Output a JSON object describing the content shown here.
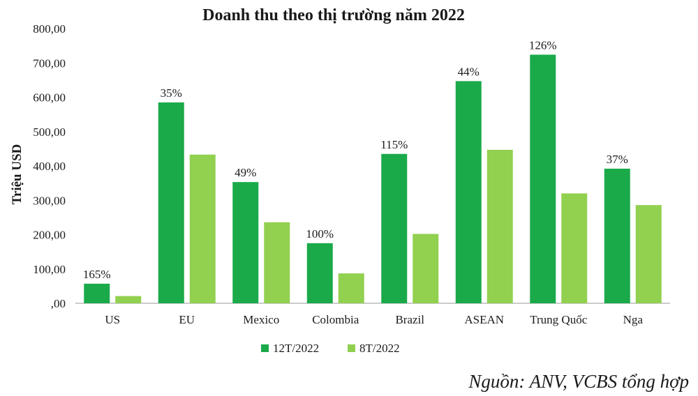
{
  "chart_data": {
    "type": "bar",
    "title": "Doanh thu theo thị trường năm 2022",
    "ylabel": "Triệu USD",
    "xlabel": "",
    "ylim": [
      0,
      800
    ],
    "yticks": [
      "800,00",
      "700,00",
      "600,00",
      "500,00",
      "400,00",
      "300,00",
      "200,00",
      "100,00",
      ",00"
    ],
    "ytick_values": [
      800,
      700,
      600,
      500,
      400,
      300,
      200,
      100,
      0
    ],
    "categories": [
      "US",
      "EU",
      "Mexico",
      "Colombia",
      "Brazil",
      "ASEAN",
      "Trung Quốc",
      "Nga"
    ],
    "series": [
      {
        "name": "12T/2022",
        "color": "#1aaa4a",
        "values": [
          57,
          585,
          353,
          175,
          435,
          647,
          724,
          392
        ]
      },
      {
        "name": "8T/2022",
        "color": "#92d050",
        "values": [
          21,
          433,
          236,
          87,
          202,
          447,
          320,
          286
        ]
      }
    ],
    "data_labels": [
      "165%",
      "35%",
      "49%",
      "100%",
      "115%",
      "44%",
      "126%",
      "37%"
    ],
    "grid": false,
    "legend_position": "bottom"
  },
  "source_note": "Nguồn: ANV, VCBS tổng hợp"
}
